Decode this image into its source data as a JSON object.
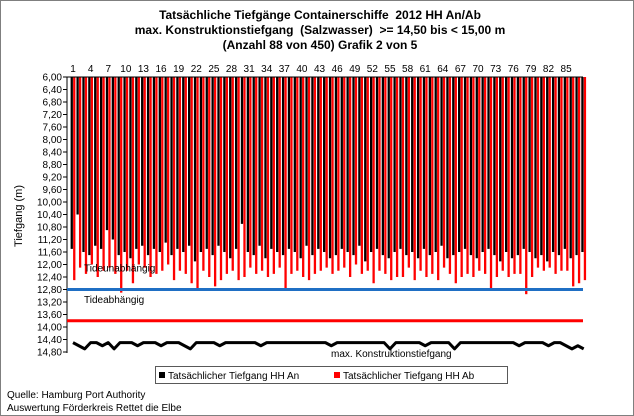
{
  "chart_data": {
    "type": "bar",
    "title_lines": [
      "Tatsächliche Tiefgänge Containerschiffe  2012 HH An/Ab",
      "max. Konstruktionstiefgang  (Salzwasser)  >= 14,50 bis < 15,00 m",
      "(Anzahl 88 von 450) Grafik 2 von 5"
    ],
    "ylabel": "Tiefgang (m)",
    "ylim": [
      6.0,
      14.8
    ],
    "y_inverted": true,
    "x_axis_position": "top",
    "grid": false,
    "legend_position": "bottom",
    "yticks": [
      6.0,
      6.4,
      6.8,
      7.2,
      7.6,
      8.0,
      8.4,
      8.8,
      9.2,
      9.6,
      10.0,
      10.4,
      10.8,
      11.2,
      11.6,
      12.0,
      12.4,
      12.8,
      13.2,
      13.6,
      14.0,
      14.4,
      14.8
    ],
    "ytick_labels": [
      "6,00",
      "6,40",
      "6,80",
      "7,20",
      "7,60",
      "8,00",
      "8,40",
      "8,80",
      "9,20",
      "9,60",
      "10,00",
      "10,40",
      "10,80",
      "11,20",
      "11,60",
      "12,00",
      "12,40",
      "12,80",
      "13,20",
      "13,60",
      "14,00",
      "14,40",
      "14,80"
    ],
    "categories": [
      1,
      2,
      3,
      4,
      5,
      6,
      7,
      8,
      9,
      10,
      11,
      12,
      13,
      14,
      15,
      16,
      17,
      18,
      19,
      20,
      21,
      22,
      23,
      24,
      25,
      26,
      27,
      28,
      29,
      30,
      31,
      32,
      33,
      34,
      35,
      36,
      37,
      38,
      39,
      40,
      41,
      42,
      43,
      44,
      45,
      46,
      47,
      48,
      49,
      50,
      51,
      52,
      53,
      54,
      55,
      56,
      57,
      58,
      59,
      60,
      61,
      62,
      63,
      64,
      65,
      66,
      67,
      68,
      69,
      70,
      71,
      72,
      73,
      74,
      75,
      76,
      77,
      78,
      79,
      80,
      81,
      82,
      83,
      84,
      85,
      86,
      87,
      88
    ],
    "xtick_labels": [
      "1",
      "4",
      "7",
      "10",
      "13",
      "16",
      "19",
      "22",
      "25",
      "28",
      "31",
      "34",
      "37",
      "40",
      "43",
      "46",
      "49",
      "52",
      "55",
      "58",
      "61",
      "64",
      "67",
      "70",
      "73",
      "76",
      "79",
      "82",
      "85"
    ],
    "series": [
      {
        "name": "Tatsächlicher Tiefgang HH An",
        "color": "#000000",
        "values": [
          11.5,
          10.4,
          11.6,
          11.7,
          11.4,
          11.5,
          10.9,
          11.2,
          11.7,
          11.6,
          11.8,
          11.5,
          11.4,
          11.7,
          11.5,
          11.6,
          11.3,
          11.7,
          11.5,
          11.6,
          11.4,
          11.9,
          11.6,
          11.5,
          11.7,
          11.4,
          11.6,
          11.8,
          11.5,
          10.7,
          11.6,
          11.7,
          11.4,
          11.8,
          11.5,
          11.6,
          11.7,
          11.5,
          11.6,
          11.8,
          11.4,
          11.7,
          11.5,
          11.6,
          11.8,
          11.7,
          11.5,
          11.6,
          11.7,
          11.4,
          11.9,
          11.6,
          11.5,
          11.7,
          11.8,
          11.6,
          11.5,
          11.7,
          11.6,
          11.8,
          11.5,
          11.7,
          11.6,
          11.4,
          11.8,
          11.7,
          11.6,
          11.5,
          11.7,
          11.8,
          11.6,
          11.5,
          11.7,
          11.9,
          11.6,
          11.8,
          11.7,
          11.5,
          11.6,
          11.8,
          11.7,
          11.9,
          11.6,
          11.7,
          11.5,
          11.8,
          11.7,
          11.6
        ]
      },
      {
        "name": "Tatsächlicher Tiefgang HH Ab",
        "color": "#FF0000",
        "values": [
          12.5,
          12.1,
          12.3,
          12.0,
          12.4,
          12.2,
          12.1,
          12.3,
          12.9,
          12.2,
          12.6,
          12.0,
          12.1,
          12.4,
          12.3,
          12.2,
          12.0,
          12.5,
          12.2,
          12.3,
          12.6,
          12.8,
          12.2,
          12.4,
          12.7,
          12.5,
          12.3,
          12.2,
          12.5,
          12.4,
          12.1,
          12.3,
          12.2,
          12.4,
          12.3,
          12.1,
          12.8,
          12.3,
          12.2,
          12.4,
          12.5,
          12.3,
          12.2,
          12.1,
          12.3,
          12.2,
          12.1,
          12.4,
          12.0,
          12.3,
          12.2,
          12.6,
          12.2,
          12.3,
          12.5,
          12.4,
          12.4,
          12.1,
          12.5,
          12.2,
          12.4,
          12.3,
          12.5,
          12.1,
          12.3,
          12.6,
          12.4,
          12.3,
          12.4,
          12.2,
          12.3,
          12.8,
          12.4,
          12.2,
          12.4,
          12.3,
          12.3,
          12.95,
          12.4,
          12.1,
          12.2,
          12.1,
          12.3,
          12.2,
          12.2,
          12.7,
          12.6,
          12.5
        ]
      }
    ],
    "reference_lines": [
      {
        "label": "Tideunabhängig",
        "value": 12.8,
        "color": "#1F6FC4"
      },
      {
        "label": "Tideabhängig",
        "value": 13.8,
        "color": "#FF0000"
      }
    ],
    "max_draft_line": {
      "label": "max. Konstruktionstiefgang",
      "color": "#000000",
      "values": [
        14.5,
        14.6,
        14.7,
        14.5,
        14.5,
        14.6,
        14.5,
        14.7,
        14.5,
        14.5,
        14.5,
        14.6,
        14.5,
        14.5,
        14.5,
        14.6,
        14.5,
        14.5,
        14.5,
        14.6,
        14.7,
        14.5,
        14.5,
        14.5,
        14.5,
        14.6,
        14.5,
        14.5,
        14.5,
        14.5,
        14.5,
        14.5,
        14.6,
        14.5,
        14.5,
        14.5,
        14.5,
        14.5,
        14.5,
        14.5,
        14.5,
        14.5,
        14.5,
        14.5,
        14.6,
        14.5,
        14.5,
        14.5,
        14.5,
        14.5,
        14.5,
        14.5,
        14.5,
        14.5,
        14.7,
        14.5,
        14.5,
        14.5,
        14.5,
        14.5,
        14.6,
        14.5,
        14.5,
        14.5,
        14.5,
        14.7,
        14.5,
        14.5,
        14.5,
        14.5,
        14.5,
        14.5,
        14.5,
        14.5,
        14.5,
        14.5,
        14.6,
        14.5,
        14.5,
        14.5,
        14.5,
        14.6,
        14.5,
        14.5,
        14.6,
        14.7,
        14.6,
        14.7
      ]
    }
  },
  "footer": {
    "source": "Quelle: Hamburg Port Authority",
    "analysis": "Auswertung Förderkreis Rettet die Elbe"
  }
}
